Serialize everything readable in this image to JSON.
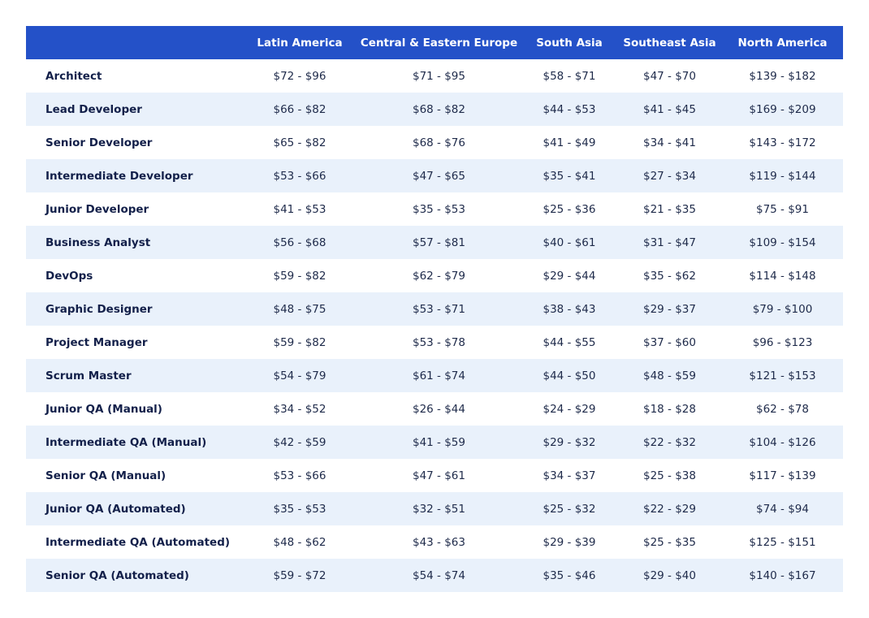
{
  "table": {
    "headers": [
      "",
      "Latin America",
      "Central & Eastern Europe",
      "South Asia",
      "Southeast Asia",
      "North America"
    ],
    "rows": [
      {
        "role": "Architect",
        "rates": [
          "$72 - $96",
          "$71 - $95",
          "$58 - $71",
          "$47 - $70",
          "$139 - $182"
        ]
      },
      {
        "role": "Lead Developer",
        "rates": [
          "$66 - $82",
          "$68 - $82",
          "$44 - $53",
          "$41 - $45",
          "$169 - $209"
        ]
      },
      {
        "role": "Senior Developer",
        "rates": [
          "$65 - $82",
          "$68 - $76",
          "$41 - $49",
          "$34 - $41",
          "$143 - $172"
        ]
      },
      {
        "role": "Intermediate Developer",
        "rates": [
          "$53 - $66",
          "$47 - $65",
          "$35 - $41",
          "$27 - $34",
          "$119 - $144"
        ]
      },
      {
        "role": "Junior Developer",
        "rates": [
          "$41 - $53",
          "$35 - $53",
          "$25 - $36",
          "$21 - $35",
          "$75 - $91"
        ]
      },
      {
        "role": "Business Analyst",
        "rates": [
          "$56 - $68",
          "$57 - $81",
          "$40 - $61",
          "$31 - $47",
          "$109 - $154"
        ]
      },
      {
        "role": "DevOps",
        "rates": [
          "$59 - $82",
          "$62 - $79",
          "$29 - $44",
          "$35 - $62",
          "$114 - $148"
        ]
      },
      {
        "role": "Graphic Designer",
        "rates": [
          "$48 - $75",
          "$53 - $71",
          "$38 - $43",
          "$29 - $37",
          "$79 - $100"
        ]
      },
      {
        "role": "Project Manager",
        "rates": [
          "$59 - $82",
          "$53 - $78",
          "$44 - $55",
          "$37 - $60",
          "$96 - $123"
        ]
      },
      {
        "role": "Scrum Master",
        "rates": [
          "$54 - $79",
          "$61 - $74",
          "$44 - $50",
          "$48 - $59",
          "$121 - $153"
        ]
      },
      {
        "role": "Junior QA (Manual)",
        "rates": [
          "$34 - $52",
          "$26 - $44",
          "$24 - $29",
          "$18 - $28",
          "$62 - $78"
        ]
      },
      {
        "role": "Intermediate QA (Manual)",
        "rates": [
          "$42 - $59",
          "$41 - $59",
          "$29 - $32",
          "$22 - $32",
          "$104 - $126"
        ]
      },
      {
        "role": "Senior QA (Manual)",
        "rates": [
          "$53 - $66",
          "$47 - $61",
          "$34 - $37",
          "$25 - $38",
          "$117 - $139"
        ]
      },
      {
        "role": "Junior QA (Automated)",
        "rates": [
          "$35 - $53",
          "$32 - $51",
          "$25 - $32",
          "$22 - $29",
          "$74 - $94"
        ]
      },
      {
        "role": "Intermediate QA (Automated)",
        "rates": [
          "$48 - $62",
          "$43 - $63",
          "$29 - $39",
          "$25 - $35",
          "$125 - $151"
        ]
      },
      {
        "role": "Senior QA (Automated)",
        "rates": [
          "$59 - $72",
          "$54 - $74",
          "$35 - $46",
          "$29 - $40",
          "$140 - $167"
        ]
      }
    ]
  },
  "colors": {
    "header_bg": "#2451c8",
    "header_text": "#ffffff",
    "stripe": "#e9f1fb",
    "role_text": "#13204a",
    "cell_text": "#1e2a4a"
  }
}
